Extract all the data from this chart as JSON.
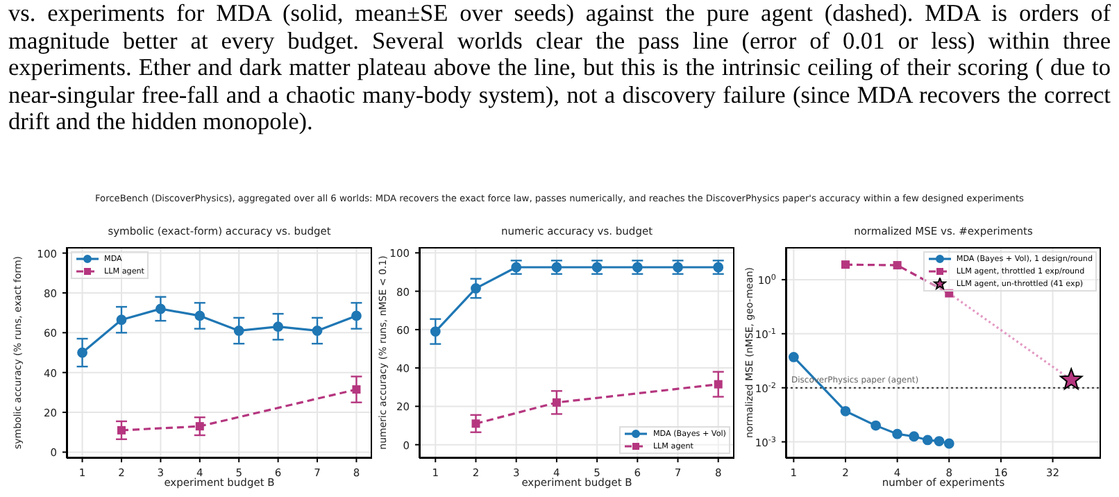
{
  "chart_data": [
    {
      "type": "line",
      "title": "symbolic (exact-form) accuracy vs. budget",
      "xlabel": "experiment budget B",
      "ylabel": "symbolic accuracy (% runs, exact form)",
      "annotations": [
        "vs. experiments for MDA (solid, mean±SE over seeds) against the pure agent (dashed). MDA is orders of magnitude better at every budget. Several worlds clear the pass line (error of 0.01 or less) within three experiments. Ether and dark matter plateau above the line, but this is the intrinsic ceiling of their scoring ( due to near-singular free-fall and a chaotic many-body system), not a discovery failure (since MDA recovers the correct drift and the hidden monopole).",
        "ForceBench (DiscoverPhysics), aggregated over all 6 worlds: MDA recovers the exact force law, passes numerically, and reaches the DiscoverPhysics paper's accuracy within a few designed experiments"
      ],
      "xlim": [
        0.6,
        8.4
      ],
      "xticks": [
        1,
        2,
        3,
        4,
        5,
        6,
        7,
        8
      ],
      "ylim": [
        -3,
        103
      ],
      "yticks": [
        0,
        20,
        40,
        60,
        80,
        100
      ],
      "grid": true,
      "legend": "top left",
      "series": [
        {
          "name": "MDA",
          "color": "#1f77b4",
          "marker": "circle",
          "line_style": "solid",
          "x": [
            1,
            2,
            3,
            4,
            5,
            6,
            7,
            8
          ],
          "values": [
            50,
            66.5,
            72,
            68.5,
            61,
            63,
            61,
            68.5
          ],
          "errors": [
            7,
            6.5,
            6,
            6.5,
            6.5,
            6.5,
            6.5,
            6.5
          ]
        },
        {
          "name": "LLM agent",
          "color": "#b5367f",
          "marker": "square",
          "line_style": "dashed",
          "x": [
            2,
            4,
            8
          ],
          "values": [
            11,
            13,
            31.5
          ],
          "errors": [
            4.5,
            4.5,
            6.5
          ]
        }
      ]
    },
    {
      "type": "line",
      "title": "numeric accuracy vs. budget",
      "xlabel": "experiment budget B",
      "ylabel": "numeric accuracy (% runs, nMSE < 0.1)",
      "xlim": [
        0.6,
        8.4
      ],
      "xticks": [
        1,
        2,
        3,
        4,
        5,
        6,
        7,
        8
      ],
      "ylim": [
        -7,
        103
      ],
      "yticks": [
        0,
        20,
        40,
        60,
        80,
        100
      ],
      "grid": true,
      "legend": "bottom right",
      "series": [
        {
          "name": "MDA (Bayes + Vol)",
          "color": "#1f77b4",
          "marker": "circle",
          "line_style": "solid",
          "x": [
            1,
            2,
            3,
            4,
            5,
            6,
            7,
            8
          ],
          "values": [
            59,
            81.5,
            92.5,
            92.5,
            92.5,
            92.5,
            92.5,
            92.5
          ],
          "errors": [
            6.5,
            5,
            3.5,
            3.5,
            3.5,
            3.5,
            3.5,
            3.5
          ]
        },
        {
          "name": "LLM agent",
          "color": "#b5367f",
          "marker": "square",
          "line_style": "dashed",
          "x": [
            2,
            4,
            8
          ],
          "values": [
            11,
            22,
            31.5
          ],
          "errors": [
            4.5,
            6,
            6.5
          ]
        }
      ]
    },
    {
      "type": "line",
      "title": "normalized MSE vs. #experiments",
      "xlabel": "number of experiments",
      "ylabel": "normalized MSE (nMSE, geo-mean)",
      "log": "xy",
      "xlim": [
        0.9,
        61
      ],
      "xticks": [
        1,
        2,
        4,
        8,
        16,
        32
      ],
      "ylim": [
        0.0005,
        4
      ],
      "yticks": [
        {
          "value": 0.001,
          "label": "10$^{-3}$"
        },
        {
          "value": 0.01,
          "label": "10$^{-2}$"
        },
        {
          "value": 0.1,
          "label": "10$^{-1}$"
        },
        {
          "value": 1,
          "label": "10$^{0}$"
        }
      ],
      "grid": true,
      "legend": "top right",
      "ref_lines": [
        {
          "axis": "y",
          "value": 0.01,
          "label": "DiscoverPhysics paper (agent)",
          "color": "#333333",
          "line_style": "dotted"
        }
      ],
      "series": [
        {
          "name": "MDA (Bayes + Vol), 1 design/round",
          "color": "#1f77b4",
          "marker": "circle",
          "line_style": "solid",
          "x": [
            1,
            2,
            3,
            4,
            5,
            6,
            7,
            8
          ],
          "values": [
            0.037,
            0.0037,
            0.002,
            0.0014,
            0.00126,
            0.00108,
            0.00103,
            0.00093
          ]
        },
        {
          "name": "LLM agent, throttled 1 exp/round",
          "color": "#b5367f",
          "marker": "square",
          "line_style": "dashed",
          "x": [
            2,
            4,
            8
          ],
          "values": [
            1.9,
            1.85,
            0.56
          ]
        },
        {
          "color": "#e39ac4",
          "marker": "none",
          "line_style": "dotted",
          "x": [
            8,
            41
          ],
          "values": [
            0.56,
            0.014
          ]
        },
        {
          "name": "LLM agent, un-throttled (41 exp)",
          "type": "scatter",
          "color": "#b5367f",
          "marker": "star",
          "x": [
            41
          ],
          "values": [
            0.014
          ]
        }
      ]
    }
  ]
}
